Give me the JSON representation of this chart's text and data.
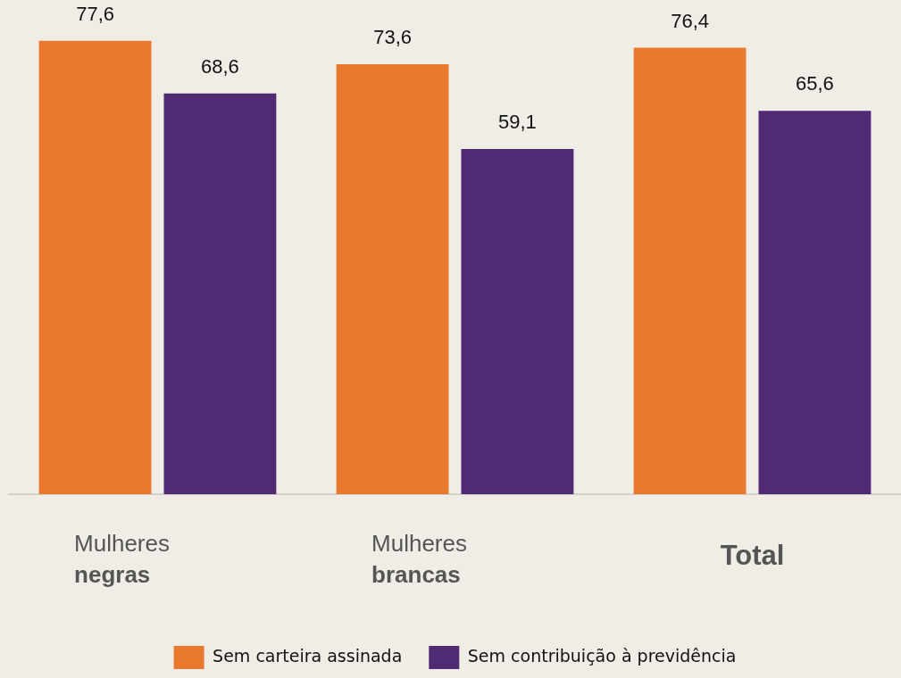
{
  "chart_data": {
    "type": "bar",
    "categories": [
      "Mulheres negras",
      "Mulheres brancas",
      "Total"
    ],
    "series": [
      {
        "name": "Sem carteira assinada",
        "color": "#e8792f",
        "values": [
          77.6,
          73.6,
          76.4
        ],
        "value_labels": [
          "77,6",
          "73,6",
          "76,4"
        ]
      },
      {
        "name": "Sem contribuição à previdência",
        "color": "#512a74",
        "values": [
          68.6,
          59.1,
          65.6
        ],
        "value_labels": [
          "68,6",
          "59,1",
          "65,6"
        ]
      }
    ],
    "legend": "bottom",
    "grid": false
  }
}
